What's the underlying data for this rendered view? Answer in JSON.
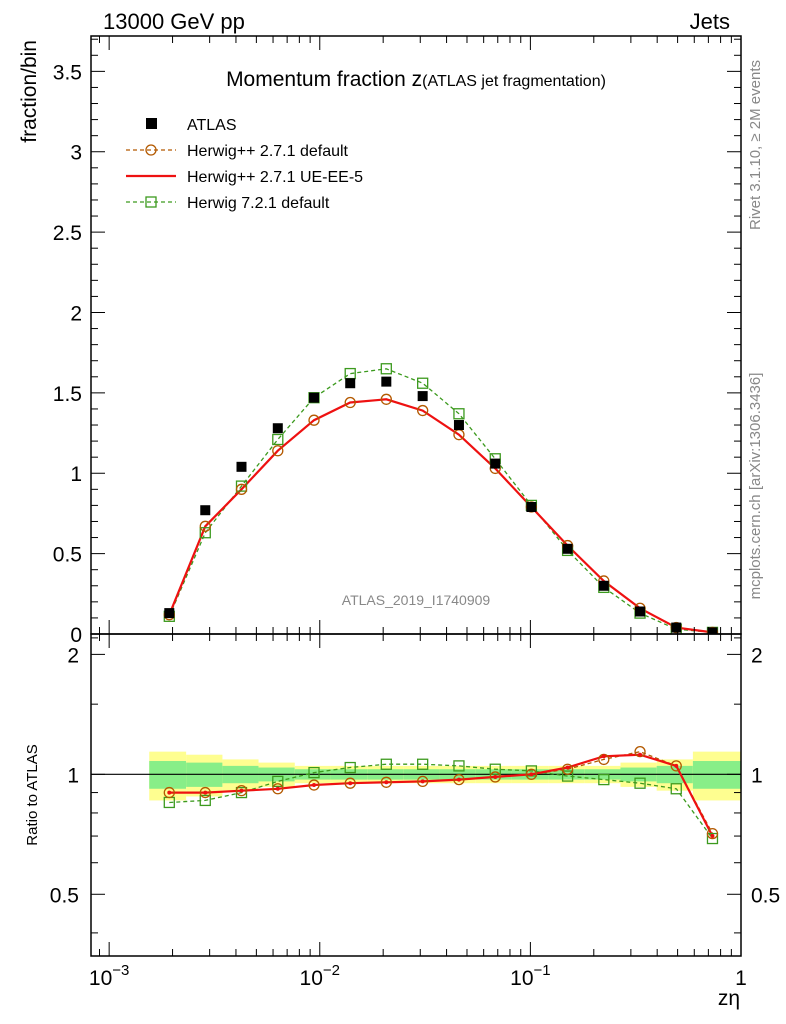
{
  "header": {
    "left": "13000 GeV pp",
    "right": "Jets"
  },
  "side": {
    "rivet": "Rivet 3.1.10, ≥ 2M events",
    "mcplots": "mcplots.cern.ch [arXiv:1306.3436]"
  },
  "chart_data": [
    {
      "type": "scatter",
      "title_main": "Momentum fraction z",
      "title_sub": "(ATLAS jet fragmentation)",
      "ylabel": "fraction/bin",
      "xlabel": "zη",
      "watermark": "ATLAS_2019_I1740909",
      "xscale": "log",
      "xlim": [
        0.00082,
        1.0
      ],
      "ylim": [
        0,
        3.72
      ],
      "yticks": [
        0,
        0.5,
        1,
        1.5,
        2,
        2.5,
        3,
        3.5
      ],
      "ytick_labels": [
        "0",
        "0.5",
        "1",
        "1.5",
        "2",
        "2.5",
        "3",
        "3.5"
      ],
      "legend_position": "top-left",
      "x": [
        0.00193,
        0.00286,
        0.00425,
        0.00632,
        0.00939,
        0.01395,
        0.0207,
        0.0308,
        0.0458,
        0.0681,
        0.1011,
        0.1502,
        0.2232,
        0.3316,
        0.4927,
        0.7321
      ],
      "series": [
        {
          "name": "ATLAS",
          "marker": "filled-square",
          "color": "#000000",
          "values": [
            0.13,
            0.77,
            1.04,
            1.28,
            1.47,
            1.56,
            1.57,
            1.48,
            1.3,
            1.06,
            0.79,
            0.53,
            0.3,
            0.14,
            0.04,
            0.01
          ]
        },
        {
          "name": "Herwig++ 2.7.1 default",
          "marker": "open-circle",
          "line": "dashed",
          "color": "#b35900",
          "values": [
            0.12,
            0.67,
            0.9,
            1.14,
            1.33,
            1.44,
            1.46,
            1.39,
            1.24,
            1.03,
            0.79,
            0.55,
            0.33,
            0.16,
            0.04,
            0.01
          ]
        },
        {
          "name": "Herwig++ 2.7.1 UE-EE-5",
          "marker": "none",
          "line": "solid",
          "color": "#ee1111",
          "values": [
            0.12,
            0.67,
            0.9,
            1.14,
            1.33,
            1.44,
            1.46,
            1.39,
            1.24,
            1.03,
            0.79,
            0.55,
            0.33,
            0.16,
            0.04,
            0.01
          ]
        },
        {
          "name": "Herwig 7.2.1 default",
          "marker": "open-square",
          "line": "dashed",
          "color": "#3c9a1e",
          "values": [
            0.11,
            0.63,
            0.92,
            1.21,
            1.47,
            1.62,
            1.65,
            1.56,
            1.37,
            1.09,
            0.8,
            0.52,
            0.29,
            0.13,
            0.03,
            0.01
          ]
        }
      ]
    },
    {
      "type": "line",
      "ylabel": "Ratio to ATLAS",
      "xscale": "log",
      "xlim": [
        0.00082,
        1.0
      ],
      "ylim": [
        0.35,
        2.25
      ],
      "yticks": [
        0.5,
        1,
        2
      ],
      "ytick_labels": [
        "0.5",
        "1",
        "2"
      ],
      "xticks": [
        0.001,
        0.01,
        0.1,
        1
      ],
      "xtick_labels": [
        {
          "base": "10",
          "exp": "−3"
        },
        {
          "base": "10",
          "exp": "−2"
        },
        {
          "base": "10",
          "exp": "−1"
        },
        {
          "base": "1",
          "exp": ""
        }
      ],
      "bands": {
        "edges": [
          0.00155,
          0.00232,
          0.00345,
          0.00512,
          0.00761,
          0.0113,
          0.0168,
          0.0249,
          0.037,
          0.055,
          0.0817,
          0.1214,
          0.1803,
          0.2678,
          0.3978,
          0.591,
          1.0
        ],
        "inner": [
          0.08,
          0.07,
          0.05,
          0.04,
          0.03,
          0.03,
          0.03,
          0.03,
          0.03,
          0.03,
          0.03,
          0.03,
          0.03,
          0.04,
          0.05,
          0.08
        ],
        "outer": [
          0.14,
          0.12,
          0.09,
          0.07,
          0.05,
          0.05,
          0.05,
          0.05,
          0.05,
          0.05,
          0.05,
          0.05,
          0.05,
          0.07,
          0.09,
          0.14
        ],
        "inner_color": "#88ee88",
        "outer_color": "#fefe90"
      },
      "series": [
        {
          "name": "Herwig++ 2.7.1 default",
          "values": [
            0.9,
            0.9,
            0.91,
            0.92,
            0.94,
            0.95,
            0.955,
            0.96,
            0.97,
            0.985,
            1.0,
            1.03,
            1.09,
            1.14,
            1.05,
            0.71
          ]
        },
        {
          "name": "Herwig++ 2.7.1 UE-EE-5",
          "values": [
            0.9,
            0.9,
            0.91,
            0.92,
            0.94,
            0.95,
            0.955,
            0.96,
            0.97,
            0.985,
            1.0,
            1.04,
            1.11,
            1.12,
            1.05,
            0.7
          ]
        },
        {
          "name": "Herwig 7.2.1 default",
          "values": [
            0.85,
            0.86,
            0.9,
            0.96,
            1.01,
            1.04,
            1.06,
            1.06,
            1.05,
            1.03,
            1.02,
            0.99,
            0.97,
            0.95,
            0.92,
            0.69
          ]
        }
      ]
    }
  ]
}
